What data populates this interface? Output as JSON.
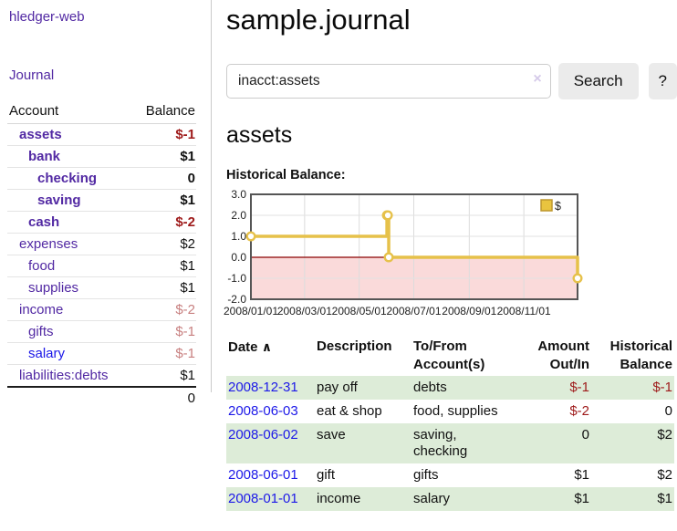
{
  "app": {
    "title": "hledger-web",
    "nav_journal": "Journal"
  },
  "sidebar": {
    "table_headers": {
      "account": "Account",
      "balance": "Balance"
    },
    "accounts": [
      {
        "name": "assets",
        "balance": "$-1",
        "indent": 0,
        "bold": true,
        "link_color": "purple",
        "balance_color": "negative"
      },
      {
        "name": "bank",
        "balance": "$1",
        "indent": 1,
        "bold": true,
        "link_color": "purple",
        "balance_color": "normal"
      },
      {
        "name": "checking",
        "balance": "0",
        "indent": 2,
        "bold": true,
        "link_color": "purple",
        "balance_color": "normal"
      },
      {
        "name": "saving",
        "balance": "$1",
        "indent": 2,
        "bold": true,
        "link_color": "purple",
        "balance_color": "normal"
      },
      {
        "name": "cash",
        "balance": "$-2",
        "indent": 1,
        "bold": true,
        "link_color": "purple",
        "balance_color": "negative"
      },
      {
        "name": "expenses",
        "balance": "$2",
        "indent": 0,
        "bold": false,
        "link_color": "purple",
        "balance_color": "normal"
      },
      {
        "name": "food",
        "balance": "$1",
        "indent": 1,
        "bold": false,
        "link_color": "purple",
        "balance_color": "normal"
      },
      {
        "name": "supplies",
        "balance": "$1",
        "indent": 1,
        "bold": false,
        "link_color": "purple",
        "balance_color": "normal"
      },
      {
        "name": "income",
        "balance": "$-2",
        "indent": 0,
        "bold": false,
        "link_color": "purple",
        "balance_color": "negative-faded"
      },
      {
        "name": "gifts",
        "balance": "$-1",
        "indent": 1,
        "bold": false,
        "link_color": "purple",
        "balance_color": "negative-faded"
      },
      {
        "name": "salary",
        "balance": "$-1",
        "indent": 1,
        "bold": false,
        "link_color": "blue",
        "balance_color": "negative-faded"
      },
      {
        "name": "liabilities:debts",
        "balance": "$1",
        "indent": 0,
        "bold": false,
        "link_color": "purple",
        "balance_color": "normal"
      }
    ],
    "total": "0"
  },
  "header": {
    "title": "sample.journal"
  },
  "search": {
    "value": "inacct:assets",
    "clear_icon": "×",
    "button": "Search",
    "help_button": "?"
  },
  "main": {
    "account_title": "assets",
    "chart_label": "Historical Balance:"
  },
  "chart_data": {
    "type": "line",
    "step": true,
    "title": "Historical Balance",
    "series": [
      {
        "name": "$",
        "points": [
          [
            "2008-01-01",
            1
          ],
          [
            "2008-06-01",
            2
          ],
          [
            "2008-06-02",
            2
          ],
          [
            "2008-06-03",
            0
          ],
          [
            "2008-12-31",
            -1
          ]
        ]
      }
    ],
    "x_range": [
      "2008-01-01",
      "2008-12-31"
    ],
    "x_ticks": [
      "2008/01/01",
      "2008/03/01",
      "2008/05/01",
      "2008/07/01",
      "2008/09/01",
      "2008/11/01"
    ],
    "y_ticks": [
      3.0,
      2.0,
      1.0,
      0.0,
      -1.0,
      -2.0
    ],
    "ylim": [
      -2,
      3
    ],
    "grid": true,
    "legend": "$",
    "legend_position": "top-right",
    "line_color": "#e6c14a",
    "marker": "open-circle",
    "negative_region_color": "#fadada",
    "zero_line_color": "#8b0000"
  },
  "register": {
    "headers": {
      "date": "Date",
      "sort_icon": "∧",
      "description": "Description",
      "accounts": "To/From Account(s)",
      "amount": "Amount Out/In",
      "balance": "Historical Balance"
    },
    "rows": [
      {
        "date": "2008-12-31",
        "description": "pay off",
        "accounts": "debts",
        "amount": "$-1",
        "amount_negative": true,
        "balance": "$-1",
        "balance_negative": true,
        "shaded": true
      },
      {
        "date": "2008-06-03",
        "description": "eat & shop",
        "accounts": "food, supplies",
        "amount": "$-2",
        "amount_negative": true,
        "balance": "0",
        "balance_negative": false,
        "shaded": false
      },
      {
        "date": "2008-06-02",
        "description": "save",
        "accounts": "saving,\nchecking",
        "amount": "0",
        "amount_negative": false,
        "balance": "$2",
        "balance_negative": false,
        "shaded": true
      },
      {
        "date": "2008-06-01",
        "description": "gift",
        "accounts": "gifts",
        "amount": "$1",
        "amount_negative": false,
        "balance": "$2",
        "balance_negative": false,
        "shaded": false
      },
      {
        "date": "2008-01-01",
        "description": "income",
        "accounts": "salary",
        "amount": "$1",
        "amount_negative": false,
        "balance": "$1",
        "balance_negative": false,
        "shaded": true
      }
    ]
  },
  "colors": {
    "link_purple": "#5229a3",
    "link_blue": "#1c18e8",
    "negative": "#9e1a1a",
    "negative_faded": "#c88080",
    "row_green": "#ddecd8",
    "chart_line": "#e6c14a",
    "chart_negative_bg": "#fadada",
    "zero_line": "#8b0000"
  }
}
